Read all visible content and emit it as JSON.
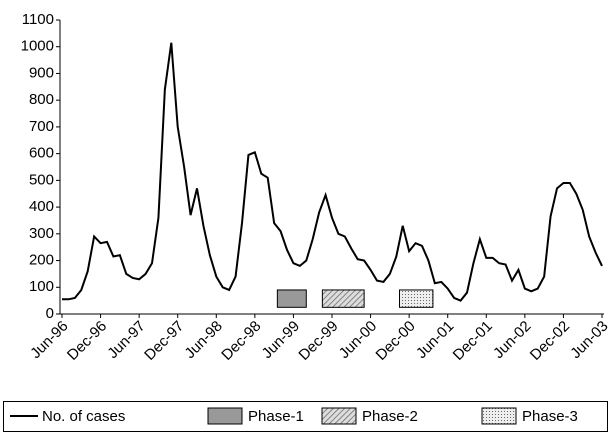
{
  "chart_data": {
    "type": "line",
    "categories": [
      "Jun-96",
      null,
      null,
      null,
      null,
      null,
      "Dec-96",
      null,
      null,
      null,
      null,
      null,
      "Jun-97",
      null,
      null,
      null,
      null,
      null,
      "Dec-97",
      null,
      null,
      null,
      null,
      null,
      "Jun-98",
      null,
      null,
      null,
      null,
      null,
      "Dec-98",
      null,
      null,
      null,
      null,
      null,
      "Jun-99",
      null,
      null,
      null,
      null,
      null,
      "Dec-99",
      null,
      null,
      null,
      null,
      null,
      "Jun-00",
      null,
      null,
      null,
      null,
      null,
      "Dec-00",
      null,
      null,
      null,
      null,
      null,
      "Jun-01",
      null,
      null,
      null,
      null,
      null,
      "Dec-01",
      null,
      null,
      null,
      null,
      null,
      "Jun-02",
      null,
      null,
      null,
      null,
      null,
      "Dec-02",
      null,
      null,
      null,
      null,
      null,
      "Jun-03"
    ],
    "series": [
      {
        "name": "No. of cases",
        "color": "#000000",
        "values": [
          55,
          55,
          60,
          90,
          160,
          290,
          265,
          270,
          215,
          220,
          150,
          135,
          130,
          150,
          190,
          360,
          840,
          1015,
          700,
          550,
          370,
          470,
          330,
          220,
          140,
          100,
          90,
          140,
          340,
          595,
          605,
          525,
          510,
          340,
          310,
          240,
          190,
          180,
          200,
          280,
          380,
          445,
          360,
          300,
          290,
          245,
          205,
          200,
          165,
          125,
          120,
          150,
          215,
          330,
          235,
          265,
          255,
          200,
          115,
          120,
          95,
          60,
          50,
          80,
          190,
          280,
          210,
          210,
          190,
          185,
          125,
          165,
          95,
          85,
          95,
          140,
          365,
          470,
          490,
          490,
          450,
          390,
          290,
          230,
          180
        ]
      }
    ],
    "phases": [
      {
        "name": "Phase-1",
        "from": 33.5,
        "to": 38,
        "low": 25,
        "high": 90,
        "pattern": "solid",
        "color": "#999999"
      },
      {
        "name": "Phase-2",
        "from": 40.5,
        "to": 47,
        "low": 25,
        "high": 90,
        "pattern": "hatch",
        "color": "#999999"
      },
      {
        "name": "Phase-3",
        "from": 52.5,
        "to": 57.7,
        "low": 25,
        "high": 90,
        "pattern": "dots",
        "color": "#999999"
      }
    ],
    "ylim": [
      0,
      1100
    ],
    "yticks": [
      0,
      100,
      200,
      300,
      400,
      500,
      600,
      700,
      800,
      900,
      1000,
      1100
    ],
    "grid": false,
    "legend": "bottom"
  }
}
